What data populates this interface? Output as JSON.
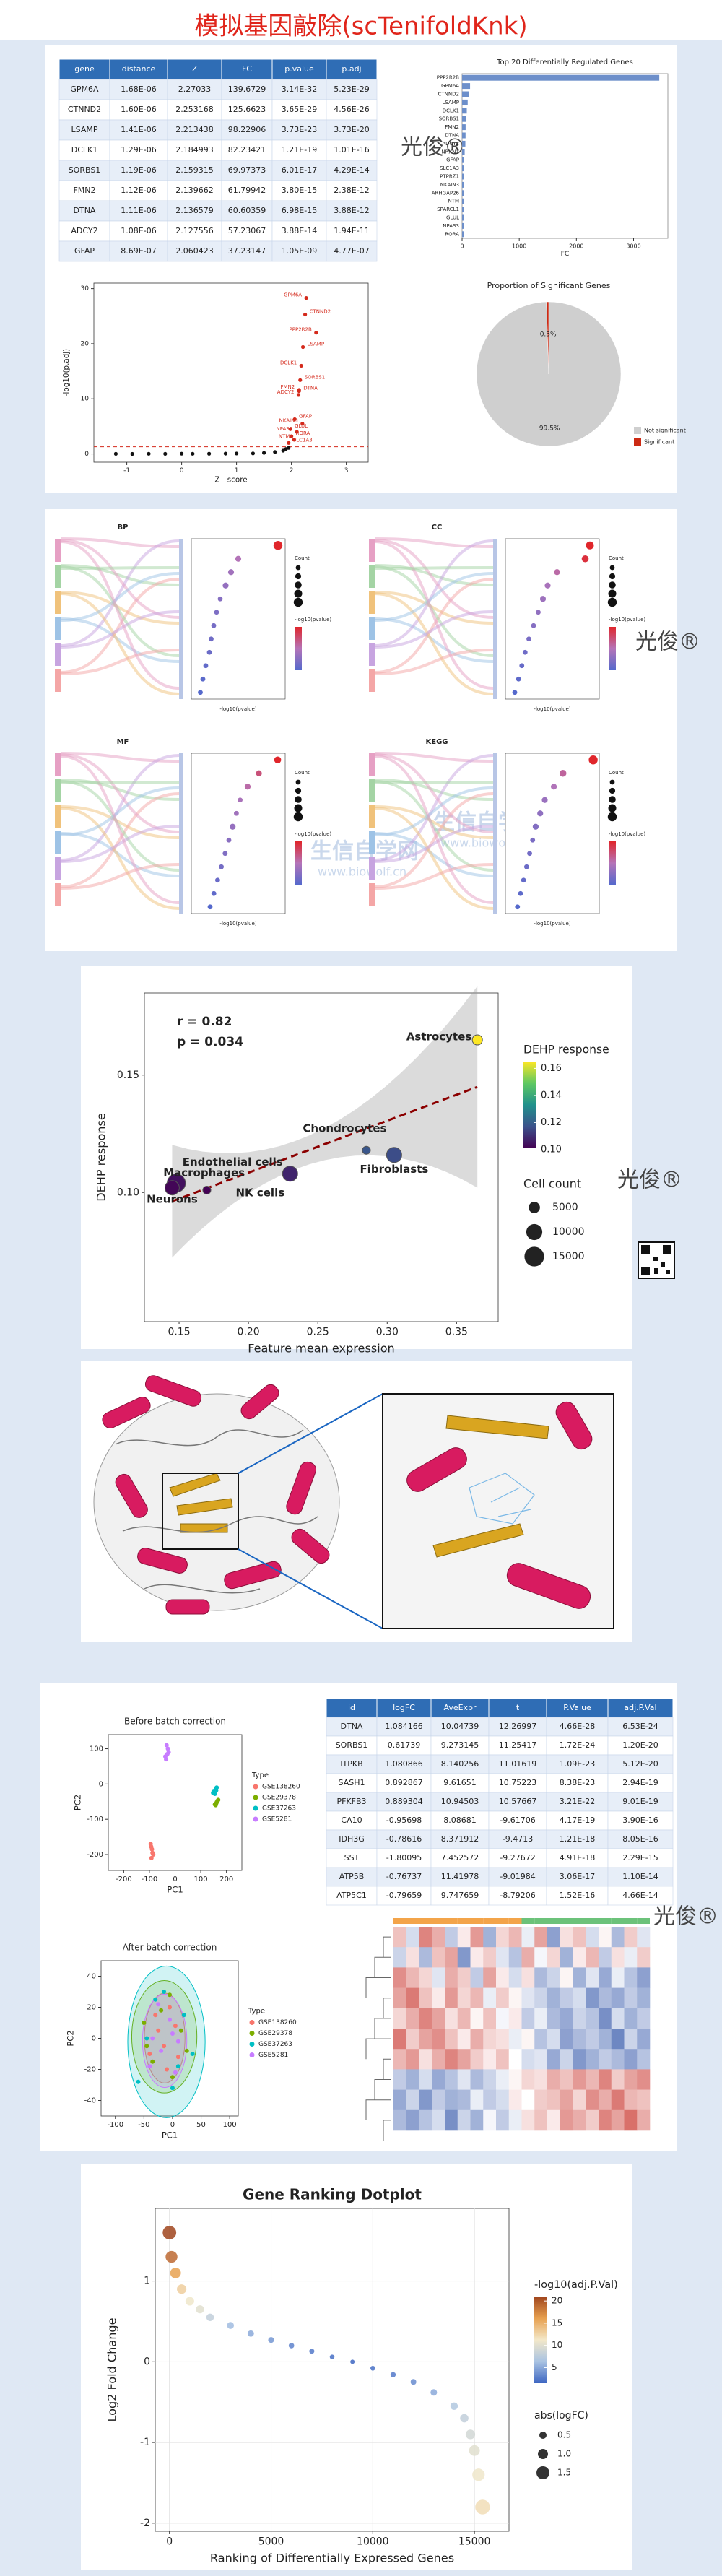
{
  "title": "模拟基因敲除(scTenifoldKnk)",
  "watermark": {
    "brand": "光俊®",
    "site_name": "生信自学网",
    "site_url": "www.biowolf.cn"
  },
  "table1": {
    "columns": [
      "gene",
      "distance",
      "Z",
      "FC",
      "p.value",
      "p.adj"
    ],
    "rows": [
      [
        "GPM6A",
        "1.68E-06",
        "2.27033",
        "139.6729",
        "3.14E-32",
        "5.23E-29"
      ],
      [
        "CTNND2",
        "1.60E-06",
        "2.253168",
        "125.6623",
        "3.65E-29",
        "4.56E-26"
      ],
      [
        "LSAMP",
        "1.41E-06",
        "2.213438",
        "98.22906",
        "3.73E-23",
        "3.73E-20"
      ],
      [
        "DCLK1",
        "1.29E-06",
        "2.184993",
        "82.23421",
        "1.21E-19",
        "1.01E-16"
      ],
      [
        "SORBS1",
        "1.19E-06",
        "2.159315",
        "69.97373",
        "6.01E-17",
        "4.29E-14"
      ],
      [
        "FMN2",
        "1.12E-06",
        "2.139662",
        "61.79942",
        "3.80E-15",
        "2.38E-12"
      ],
      [
        "DTNA",
        "1.11E-06",
        "2.136579",
        "60.60359",
        "6.98E-15",
        "3.88E-12"
      ],
      [
        "ADCY2",
        "1.08E-06",
        "2.127556",
        "57.23067",
        "3.88E-14",
        "1.94E-11"
      ],
      [
        "GFAP",
        "8.69E-07",
        "2.060423",
        "37.23147",
        "1.05E-09",
        "4.77E-07"
      ]
    ]
  },
  "table2": {
    "columns": [
      "id",
      "logFC",
      "AveExpr",
      "t",
      "P.Value",
      "adj.P.Val"
    ],
    "rows": [
      [
        "DTNA",
        "1.084166",
        "10.04739",
        "12.26997",
        "4.66E-28",
        "6.53E-24"
      ],
      [
        "SORBS1",
        "0.61739",
        "9.273145",
        "11.25417",
        "1.72E-24",
        "1.20E-20"
      ],
      [
        "ITPKB",
        "1.080866",
        "8.140256",
        "11.01619",
        "1.09E-23",
        "5.12E-20"
      ],
      [
        "SASH1",
        "0.892867",
        "9.61651",
        "10.75223",
        "8.38E-23",
        "2.94E-19"
      ],
      [
        "PFKFB3",
        "0.889304",
        "10.94503",
        "10.57667",
        "3.21E-22",
        "9.01E-19"
      ],
      [
        "CA10",
        "-0.95698",
        "8.08681",
        "-9.61706",
        "4.17E-19",
        "3.90E-16"
      ],
      [
        "IDH3G",
        "-0.78616",
        "8.371912",
        "-9.4713",
        "1.21E-18",
        "8.05E-16"
      ],
      [
        "SST",
        "-1.80095",
        "7.452572",
        "-9.27672",
        "4.91E-18",
        "2.29E-15"
      ],
      [
        "ATP5B",
        "-0.76737",
        "11.41978",
        "-9.01984",
        "3.06E-17",
        "1.10E-14"
      ],
      [
        "ATP5C1",
        "-0.79659",
        "9.747659",
        "-8.79206",
        "1.52E-16",
        "4.66E-14"
      ]
    ]
  },
  "chart_data": [
    {
      "type": "bar",
      "orientation": "horizontal",
      "title": "Top 20 Differentially Regulated Genes",
      "x_label": "FC",
      "categories": [
        "PPP2R2B",
        "GPM6A",
        "CTNND2",
        "LSAMP",
        "DCLK1",
        "SORBS1",
        "FMN2",
        "DTNA",
        "ADCY2",
        "NRXN1",
        "GFAP",
        "SLC1A3",
        "PTPRZ1",
        "NKAIN3",
        "ARHGAP26",
        "NTM",
        "SPARCL1",
        "GLUL",
        "NPAS3",
        "RORA"
      ],
      "values": [
        3450,
        139.67,
        125.66,
        98.23,
        82.23,
        69.97,
        61.8,
        60.6,
        57.23,
        45,
        37.23,
        36,
        35,
        34,
        33,
        32,
        31,
        30,
        29,
        28
      ],
      "color": "#6d8fca",
      "xlim": [
        0,
        3600
      ],
      "xticks": [
        0,
        1000,
        2000,
        3000
      ],
      "grid": false
    },
    {
      "type": "pie",
      "title": "Proportion of Significant Genes",
      "categories": [
        "Not significant",
        "Significant"
      ],
      "values": [
        99.5,
        0.5
      ],
      "value_labels": [
        "99.5%",
        "0.5%"
      ],
      "colors": [
        "#cfcfcf",
        "#cc2a14"
      ]
    },
    {
      "type": "scatter",
      "x_label": "Z - score",
      "y_label": "-log10(p.adj)",
      "xlim": [
        -1.6,
        3.4
      ],
      "xticks": [
        -1,
        0,
        1,
        2,
        3
      ],
      "ylim": [
        -1.5,
        31
      ],
      "yticks": [
        0,
        10,
        20,
        30
      ],
      "hline": 1.3,
      "hline_color": "#d42a1c",
      "series": [
        {
          "color": "#111111",
          "x": [
            -1.2,
            -0.9,
            -0.6,
            -0.3,
            0,
            0.2,
            0.5,
            0.8,
            1.0,
            1.3,
            1.5,
            1.7,
            1.85,
            1.9,
            1.95
          ],
          "values": [
            0.02,
            0.01,
            0.03,
            0.02,
            0.05,
            0.03,
            0.04,
            0.06,
            0.08,
            0.1,
            0.2,
            0.35,
            0.6,
            0.9,
            1.1
          ]
        },
        {
          "color": "#d42a1c",
          "labels": [
            "GPM6A",
            "CTNND2",
            "PPP2R2B",
            "LSAMP",
            "DCLK1",
            "SORBS1",
            "FMN2",
            "DTNA",
            "ADCY2",
            "GFAP",
            "NKAIN3",
            "GLUL",
            "NPAS3",
            "RORA",
            "NTM",
            "SLC1A3"
          ],
          "x": [
            2.27,
            2.25,
            2.45,
            2.21,
            2.18,
            2.16,
            2.14,
            2.14,
            2.13,
            2.06,
            2.2,
            1.98,
            2.1,
            2.0,
            2.05,
            1.95
          ],
          "values": [
            28.3,
            25.3,
            22,
            19.4,
            16,
            13.4,
            11.6,
            11.4,
            10.7,
            6.3,
            5.5,
            4.5,
            4,
            3.2,
            2.6,
            2
          ]
        }
      ]
    },
    {
      "type": "dotplot",
      "title": "BP",
      "x_label": "-log10(pvalue)",
      "size_title": "Count",
      "color_title": "-log10(pvalue)",
      "xlim": [
        1.8,
        4.4
      ],
      "values": [
        4.2,
        3.1,
        2.9,
        2.75,
        2.6,
        2.5,
        2.42,
        2.35,
        2.3,
        2.2,
        2.12,
        2.05
      ],
      "counts": [
        6,
        3,
        3,
        3,
        2,
        2,
        2,
        2,
        2,
        2,
        2,
        2
      ]
    },
    {
      "type": "dotplot",
      "title": "CC",
      "x_label": "-log10(pvalue)",
      "size_title": "Count",
      "color_title": "-log10(pvalue)",
      "xlim": [
        1.2,
        3.2
      ],
      "values": [
        3.0,
        2.9,
        2.3,
        2.1,
        2.0,
        1.9,
        1.8,
        1.7,
        1.62,
        1.55,
        1.48,
        1.4
      ],
      "counts": [
        5,
        4,
        3,
        3,
        3,
        2,
        2,
        2,
        2,
        2,
        2,
        2
      ]
    },
    {
      "type": "dotplot",
      "title": "MF",
      "x_label": "-log10(pvalue)",
      "size_title": "Count",
      "color_title": "-log10(pvalue)",
      "xlim": [
        2.35,
        3.6
      ],
      "values": [
        3.5,
        3.25,
        3.1,
        3.0,
        2.95,
        2.9,
        2.85,
        2.8,
        2.75,
        2.7,
        2.65,
        2.6
      ],
      "counts": [
        4,
        3,
        3,
        2,
        2,
        3,
        2,
        2,
        2,
        2,
        2,
        2
      ]
    },
    {
      "type": "dotplot",
      "title": "KEGG",
      "x_label": "-log10(pvalue)",
      "size_title": "Count",
      "color_title": "-log10(pvalue)",
      "xlim": [
        1.3,
        4.4
      ],
      "values": [
        4.2,
        3.2,
        2.9,
        2.6,
        2.45,
        2.3,
        2.2,
        2.1,
        2.0,
        1.9,
        1.8,
        1.7
      ],
      "counts": [
        6,
        4,
        3,
        3,
        3,
        3,
        2,
        2,
        2,
        2,
        2,
        2
      ]
    },
    {
      "type": "bubble",
      "x_label": "Feature mean expression",
      "y_label": "DEHP response",
      "annotations": [
        "r = 0.82",
        "p = 0.034"
      ],
      "categories": [
        "Astrocytes",
        "Chondrocytes",
        "Fibroblasts",
        "Endothelial cells",
        "Macrophages",
        "Neurons",
        "NK cells"
      ],
      "x": [
        0.365,
        0.285,
        0.305,
        0.23,
        0.148,
        0.145,
        0.17
      ],
      "values": [
        0.165,
        0.118,
        0.116,
        0.108,
        0.104,
        0.102,
        0.101
      ],
      "sizes": [
        4000,
        2500,
        9000,
        9000,
        13000,
        8000,
        2500
      ],
      "xlim": [
        0.125,
        0.38
      ],
      "xticks": [
        0.15,
        {
          "value": 0.2,
          "label": "0.20"
        },
        0.25,
        {
          "value": 0.3,
          "label": "0.30"
        },
        0.35
      ],
      "ylim": [
        0.045,
        0.185
      ],
      "yticks": [
        {
          "value": 0.1,
          "label": "0.10"
        },
        0.15
      ],
      "colorbar": {
        "title": "DEHP response",
        "ticks": [
          {
            "value": 0.1,
            "label": "0.10"
          },
          0.12,
          0.14,
          0.16
        ]
      },
      "size_legend": {
        "title": "Cell count",
        "ticks": [
          5000,
          10000,
          15000
        ]
      }
    },
    {
      "type": "scatter",
      "title": "Before batch correction",
      "x_label": "PC1",
      "y_label": "PC2",
      "legend_title": "Type",
      "xlim": [
        -260,
        260
      ],
      "xticks": [
        -200,
        -100,
        0,
        100,
        200
      ],
      "ylim": [
        -245,
        140
      ],
      "yticks": [
        -200,
        -100,
        0,
        100
      ],
      "series": [
        {
          "name": "GSE138260",
          "color": "#f8766d",
          "x": [
            -95,
            -90,
            -85,
            -92,
            -88,
            -93
          ],
          "values": [
            -170,
            -185,
            -200,
            -210,
            -195,
            -178
          ]
        },
        {
          "name": "GSE29378",
          "color": "#7cae00",
          "x": [
            160,
            165,
            158,
            162,
            168,
            155
          ],
          "values": [
            -55,
            -48,
            -60,
            -52,
            -45,
            -58
          ]
        },
        {
          "name": "GSE37263",
          "color": "#00bfc4",
          "x": [
            150,
            158,
            155,
            162,
            148,
            160
          ],
          "values": [
            -20,
            -15,
            -28,
            -10,
            -25,
            -18
          ]
        },
        {
          "name": "GSE5281",
          "color": "#c77cff",
          "x": [
            -35,
            -30,
            -28,
            -33,
            -25,
            -38
          ],
          "values": [
            70,
            85,
            100,
            110,
            90,
            78
          ]
        }
      ]
    },
    {
      "type": "scatter",
      "title": "After batch correction",
      "x_label": "PC1",
      "y_label": "PC2",
      "legend_title": "Type",
      "ellipses": true,
      "xlim": [
        -125,
        115
      ],
      "xticks": [
        -100,
        -50,
        0,
        50,
        100
      ],
      "ylim": [
        -50,
        50
      ],
      "yticks": [
        -40,
        -20,
        0,
        20,
        40
      ],
      "series": [
        {
          "name": "GSE138260",
          "color": "#f8766d",
          "x": [
            -40,
            -25,
            -10,
            5,
            -30,
            -15,
            10,
            -5
          ],
          "values": [
            -10,
            5,
            -20,
            8,
            15,
            -5,
            -12,
            20
          ]
        },
        {
          "name": "GSE29378",
          "color": "#7cae00",
          "x": [
            -50,
            -35,
            -20,
            0,
            15,
            -45,
            -5,
            25
          ],
          "values": [
            10,
            -15,
            18,
            -25,
            5,
            -5,
            28,
            -8
          ]
        },
        {
          "name": "GSE37263",
          "color": "#00bfc4",
          "x": [
            -60,
            -30,
            0,
            20,
            -15,
            35,
            -45,
            10
          ],
          "values": [
            -28,
            25,
            -32,
            15,
            30,
            -10,
            0,
            -18
          ]
        },
        {
          "name": "GSE5281",
          "color": "#c77cff",
          "x": [
            -35,
            -20,
            -5,
            10,
            -25,
            0,
            -40,
            5
          ],
          "values": [
            0,
            -8,
            12,
            -2,
            22,
            3,
            -18,
            -22
          ]
        }
      ]
    },
    {
      "type": "heatmap",
      "colors": [
        "#2f53a8",
        "#ffffff",
        "#c8322a"
      ],
      "zlim": [
        -2,
        2
      ],
      "values": [
        [
          0.6,
          -0.4,
          1.2,
          0.8,
          -0.6,
          0.2,
          1.0,
          -0.9,
          0.4,
          0.7,
          -0.2,
          0.9,
          -1.1,
          0.3,
          0.6,
          -0.4,
          0.1,
          -0.8,
          0.5,
          -0.3
        ],
        [
          -0.5,
          0.3,
          -0.8,
          0.6,
          0.9,
          -1.2,
          0.2,
          0.5,
          -0.3,
          -0.7,
          0.8,
          -0.1,
          0.4,
          -0.9,
          0.2,
          0.7,
          -0.6,
          0.3,
          -0.2,
          0.5
        ],
        [
          1.1,
          0.7,
          0.4,
          -0.3,
          0.8,
          0.5,
          -0.6,
          0.9,
          0.2,
          -0.4,
          0.3,
          -0.8,
          -0.5,
          0.1,
          -0.9,
          -0.3,
          -1.0,
          -0.2,
          -0.7,
          -1.1
        ],
        [
          0.9,
          1.3,
          0.6,
          0.2,
          1.0,
          0.4,
          0.7,
          -0.2,
          0.5,
          0.1,
          -0.3,
          -0.5,
          -0.9,
          -0.6,
          -0.4,
          -1.2,
          -0.8,
          -1.0,
          -0.6,
          -0.9
        ],
        [
          0.4,
          0.8,
          1.2,
          0.9,
          0.3,
          0.7,
          0.1,
          0.6,
          -0.1,
          0.2,
          -0.6,
          -0.2,
          -0.8,
          -1.0,
          -0.5,
          -0.7,
          -1.3,
          -0.4,
          -0.9,
          -0.6
        ],
        [
          1.3,
          0.5,
          0.9,
          1.1,
          0.6,
          0.2,
          0.8,
          0.4,
          0.3,
          -0.2,
          0.1,
          -0.7,
          -0.4,
          -1.1,
          -0.8,
          -0.6,
          -0.9,
          -1.4,
          -0.5,
          -1.0
        ],
        [
          0.7,
          1.0,
          0.3,
          0.8,
          1.2,
          0.9,
          0.5,
          0.2,
          0.6,
          0.0,
          -0.4,
          -0.3,
          -1.0,
          -0.5,
          -1.2,
          -0.9,
          -0.6,
          -0.8,
          -1.1,
          -0.7
        ],
        [
          -0.6,
          -0.9,
          -0.4,
          -1.0,
          -0.7,
          -0.3,
          -0.8,
          -0.5,
          -0.2,
          0.1,
          0.4,
          0.3,
          0.8,
          0.6,
          1.0,
          0.7,
          1.2,
          0.5,
          0.9,
          1.1
        ],
        [
          -1.0,
          -0.5,
          -1.2,
          -0.6,
          -0.9,
          -0.8,
          -0.2,
          -0.6,
          -0.4,
          0.2,
          0.0,
          0.5,
          0.6,
          0.9,
          0.4,
          1.1,
          0.8,
          1.3,
          0.7,
          0.6
        ],
        [
          -0.8,
          -1.1,
          -0.7,
          -0.4,
          -1.3,
          -0.5,
          -0.9,
          -0.1,
          -0.6,
          -0.2,
          0.3,
          0.6,
          0.2,
          1.0,
          0.8,
          0.5,
          1.2,
          0.9,
          1.4,
          0.8
        ]
      ]
    },
    {
      "type": "scatter",
      "title": "Gene Ranking Dotplot",
      "x_label": "Ranking of Differentially Expressed Genes",
      "y_label": "Log2 Fold Change",
      "grid": true,
      "xlim": [
        -700,
        16700
      ],
      "xticks": [
        0,
        5000,
        10000,
        15000
      ],
      "ylim": [
        -2.1,
        1.9
      ],
      "yticks": [
        -2,
        -1,
        0,
        1
      ],
      "x": [
        0,
        100,
        300,
        600,
        1000,
        1500,
        2000,
        3000,
        4000,
        5000,
        6000,
        7000,
        8000,
        9000,
        10000,
        11000,
        12000,
        13000,
        14000,
        14500,
        14800,
        15000,
        15200,
        15400
      ],
      "values": [
        1.6,
        1.3,
        1.1,
        0.9,
        0.75,
        0.65,
        0.55,
        0.45,
        0.35,
        0.27,
        0.2,
        0.13,
        0.06,
        0,
        -0.08,
        -0.16,
        -0.25,
        -0.38,
        -0.55,
        -0.7,
        -0.9,
        -1.1,
        -1.4,
        -1.8
      ],
      "color_values": [
        21,
        19,
        16,
        13,
        11,
        10,
        8,
        6,
        5,
        4,
        3,
        2.5,
        2,
        1.5,
        2,
        2.5,
        3.5,
        5,
        7,
        8,
        9,
        10,
        11,
        12
      ],
      "colors": [
        "#3d66c2",
        "#a9c3e2",
        "#f3e8c9",
        "#e7a04f",
        "#a0451d"
      ],
      "colorbar": {
        "title": "-log10(adj.P.Val)",
        "ticks": [
          5,
          10,
          15,
          20
        ]
      },
      "size_legend": {
        "title": "abs(logFC)",
        "ticks": [
          0.5,
          {
            "value": 1,
            "label": "1.0"
          },
          1.5
        ]
      }
    }
  ]
}
